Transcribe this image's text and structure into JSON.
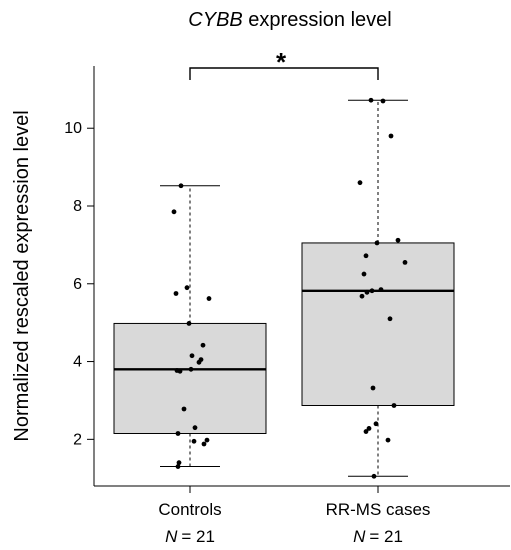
{
  "chart_data": {
    "type": "box",
    "title_italic": "CYBB",
    "title_rest": " expression level",
    "ylabel": "Normalized rescaled expression level",
    "ylim": [
      0.8,
      11.6
    ],
    "yticks": [
      2,
      4,
      6,
      8,
      10
    ],
    "categories": [
      "Controls",
      "RR-MS cases"
    ],
    "n_prefix": "N",
    "n_values": [
      "= 21",
      "= 21"
    ],
    "significance": "*",
    "box_fill": "#d9d9d9",
    "boxes": [
      {
        "name": "Controls",
        "whisker_low": 1.3,
        "q1": 2.15,
        "median": 3.8,
        "q3": 4.98,
        "whisker_high": 8.52
      },
      {
        "name": "RR-MS cases",
        "whisker_low": 1.05,
        "q1": 2.87,
        "median": 5.82,
        "q3": 7.05,
        "whisker_high": 10.72
      }
    ],
    "points": [
      [
        8.52,
        7.85,
        5.9,
        5.75,
        5.62,
        4.98,
        4.42,
        4.15,
        4.05,
        3.98,
        3.8,
        3.75,
        2.78,
        2.3,
        2.15,
        1.98,
        1.95,
        1.88,
        1.4,
        1.3,
        3.77
      ],
      [
        10.72,
        10.7,
        9.8,
        8.6,
        7.12,
        7.05,
        6.72,
        6.55,
        6.25,
        5.85,
        5.82,
        5.78,
        5.68,
        5.1,
        3.32,
        2.87,
        2.4,
        2.28,
        2.2,
        1.98,
        1.05
      ]
    ]
  }
}
